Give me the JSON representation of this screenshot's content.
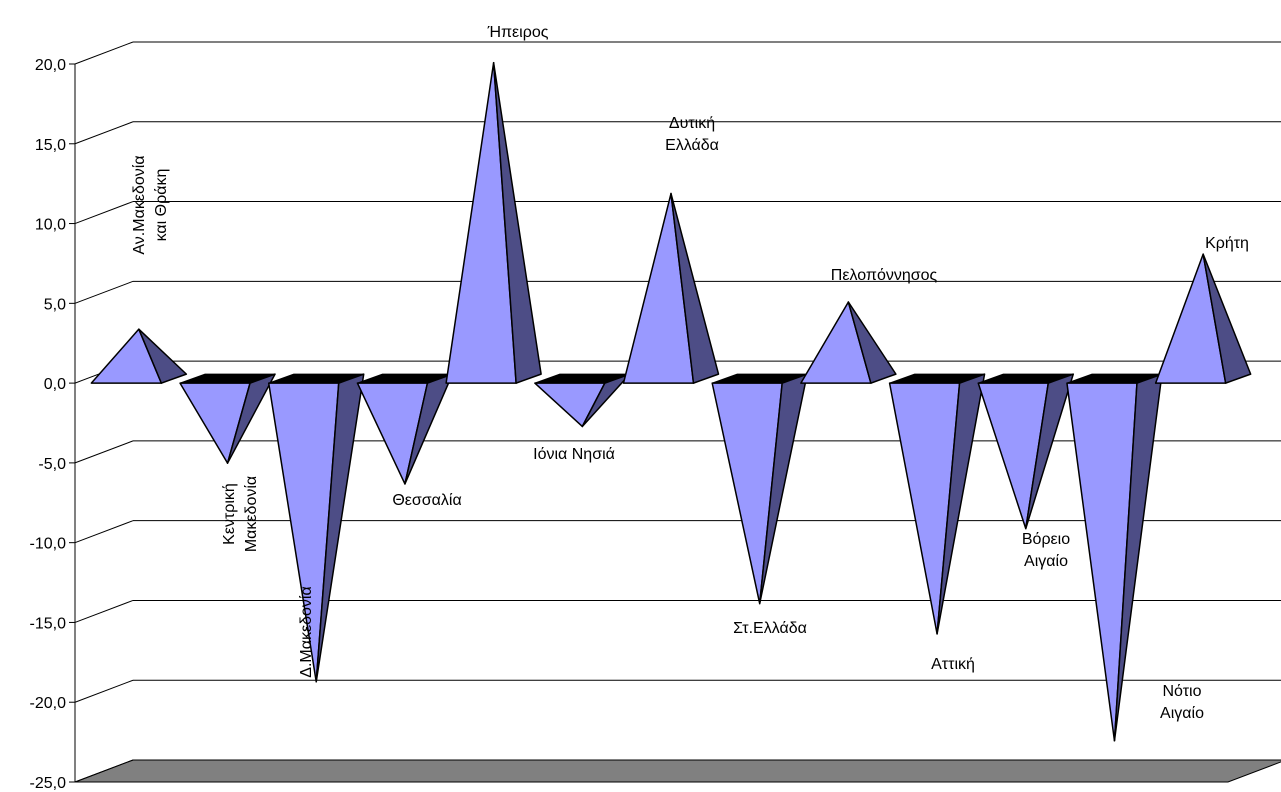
{
  "chart_data": {
    "type": "bar",
    "title": "",
    "xlabel": "",
    "ylabel": "",
    "ylim": [
      -25,
      20
    ],
    "y_ticks": [
      20,
      15,
      10,
      5,
      0,
      -5,
      -10,
      -15,
      -20,
      -25
    ],
    "y_tick_labels": [
      "20,0",
      "15,0",
      "10,0",
      "5,0",
      "0,0",
      "-5,0",
      "-10,0",
      "-15,0",
      "-20,0",
      "-25,0"
    ],
    "grid": true,
    "legend": "none",
    "three_d": true,
    "mark_shape": "pyramid",
    "categories": [
      "Αν.Μακεδονία και Θράκη",
      "Κεντρική Μακεδονία",
      "Δ.Μακεδονία",
      "Θεσσαλία",
      "Ήπειρος",
      "Ιόνια Νησιά",
      "Δυτική Ελλάδα",
      "Στ.Ελλάδα",
      "Πελοπόννησος",
      "Αττική",
      "Βόρειο Αιγαίο",
      "Νότιο Αιγαίο",
      "Κρήτη"
    ],
    "values": [
      3.1,
      -5.3,
      -19.0,
      -6.6,
      19.8,
      -3.0,
      11.6,
      -14.1,
      4.8,
      -16.0,
      -9.4,
      -22.7,
      7.8
    ],
    "colors": {
      "front": "#9999ff",
      "side": "#4d4d86",
      "top": "#000000",
      "floor": "#808080",
      "grid": "#000000"
    }
  }
}
